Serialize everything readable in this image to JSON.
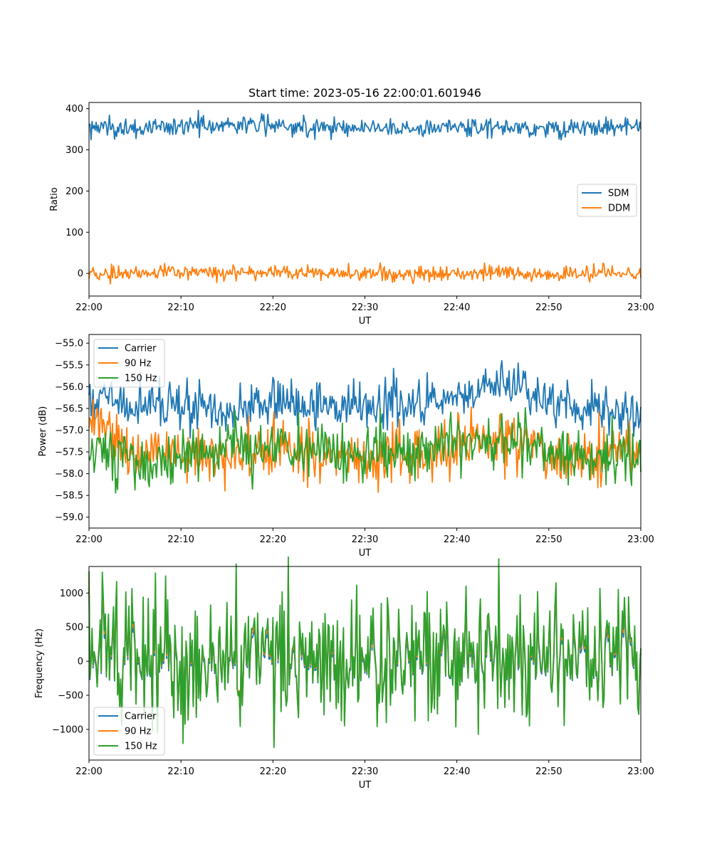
{
  "figure": {
    "title": "Start time: 2023-05-16 22:00:01.601946"
  },
  "chart_data": [
    {
      "type": "line",
      "xlabel": "UT",
      "ylabel": "Ratio",
      "xlim": [
        "22:00",
        "23:00"
      ],
      "ylim": [
        -55,
        415
      ],
      "x_ticks": [
        "22:00",
        "22:10",
        "22:20",
        "22:30",
        "22:40",
        "22:50",
        "23:00"
      ],
      "y_ticks": [
        0,
        100,
        200,
        300,
        400
      ],
      "legend_position": "center-right",
      "grid": false,
      "series": [
        {
          "name": "SDM",
          "color": "#1f77b4",
          "x": [
            "22:00",
            "22:05",
            "22:10",
            "22:15",
            "22:20",
            "22:25",
            "22:30",
            "22:35",
            "22:40",
            "22:45",
            "22:50",
            "22:55",
            "23:00"
          ],
          "values": [
            355,
            350,
            358,
            362,
            360,
            356,
            354,
            352,
            355,
            357,
            350,
            356,
            355
          ]
        },
        {
          "name": "DDM",
          "color": "#ff7f0e",
          "x": [
            "22:00",
            "22:05",
            "22:10",
            "22:15",
            "22:20",
            "22:25",
            "22:30",
            "22:35",
            "22:40",
            "22:45",
            "22:50",
            "22:55",
            "23:00"
          ],
          "values": [
            -5,
            2,
            3,
            0,
            2,
            1,
            0,
            -2,
            -1,
            2,
            -3,
            1,
            -5
          ]
        }
      ]
    },
    {
      "type": "line",
      "xlabel": "UT",
      "ylabel": "Power (dB)",
      "xlim": [
        "22:00",
        "23:00"
      ],
      "ylim": [
        -59.25,
        -54.8
      ],
      "x_ticks": [
        "22:00",
        "22:10",
        "22:20",
        "22:30",
        "22:40",
        "22:50",
        "23:00"
      ],
      "y_ticks": [
        -55.0,
        -55.5,
        -56.0,
        -56.5,
        -57.0,
        -57.5,
        -58.0,
        -58.5,
        -59.0
      ],
      "legend_position": "upper-left",
      "grid": false,
      "series": [
        {
          "name": "Carrier",
          "color": "#1f77b4",
          "x": [
            "22:00",
            "22:05",
            "22:10",
            "22:15",
            "22:20",
            "22:25",
            "22:30",
            "22:35",
            "22:40",
            "22:45",
            "22:50",
            "22:55",
            "23:00"
          ],
          "values": [
            -56.2,
            -56.4,
            -56.5,
            -56.6,
            -56.3,
            -56.5,
            -56.4,
            -56.5,
            -56.2,
            -56.0,
            -56.3,
            -56.5,
            -56.6
          ]
        },
        {
          "name": "90 Hz",
          "color": "#ff7f0e",
          "x": [
            "22:00",
            "22:05",
            "22:10",
            "22:15",
            "22:20",
            "22:25",
            "22:30",
            "22:35",
            "22:40",
            "22:45",
            "22:50",
            "22:55",
            "23:00"
          ],
          "values": [
            -56.8,
            -57.5,
            -57.6,
            -57.6,
            -57.5,
            -57.6,
            -57.7,
            -57.5,
            -57.3,
            -57.2,
            -57.5,
            -57.6,
            -57.4
          ]
        },
        {
          "name": "150 Hz",
          "color": "#2ca02c",
          "x": [
            "22:00",
            "22:05",
            "22:10",
            "22:15",
            "22:20",
            "22:25",
            "22:30",
            "22:35",
            "22:40",
            "22:45",
            "22:50",
            "22:55",
            "23:00"
          ],
          "values": [
            -57.6,
            -57.6,
            -57.5,
            -57.5,
            -57.4,
            -57.5,
            -57.6,
            -57.5,
            -57.3,
            -57.2,
            -57.5,
            -57.6,
            -57.7
          ]
        }
      ]
    },
    {
      "type": "line",
      "xlabel": "UT",
      "ylabel": "Frequency (Hz)",
      "xlim": [
        "22:00",
        "23:00"
      ],
      "ylim": [
        -1450,
        1390
      ],
      "x_ticks": [
        "22:00",
        "22:10",
        "22:20",
        "22:30",
        "22:40",
        "22:50",
        "23:00"
      ],
      "y_ticks": [
        1000,
        500,
        0,
        -500,
        -1000
      ],
      "legend_position": "lower-left",
      "grid": false,
      "series": [
        {
          "name": "Carrier",
          "color": "#1f77b4",
          "x": [
            "22:00",
            "22:05",
            "22:10",
            "22:15",
            "22:20",
            "22:25",
            "22:30",
            "22:35",
            "22:40",
            "22:45",
            "22:50",
            "22:55",
            "23:00"
          ],
          "values": [
            -20,
            10,
            -40,
            20,
            0,
            -60,
            30,
            -20,
            40,
            10,
            -30,
            20,
            -10
          ]
        },
        {
          "name": "90 Hz",
          "color": "#ff7f0e",
          "x": [
            "22:00",
            "22:05",
            "22:10",
            "22:15",
            "22:20",
            "22:25",
            "22:30",
            "22:35",
            "22:40",
            "22:45",
            "22:50",
            "22:55",
            "23:00"
          ],
          "values": [
            20,
            50,
            0,
            60,
            40,
            -20,
            70,
            20,
            80,
            50,
            10,
            60,
            30
          ]
        },
        {
          "name": "150 Hz",
          "color": "#2ca02c",
          "x": [
            "22:00",
            "22:05",
            "22:10",
            "22:15",
            "22:20",
            "22:25",
            "22:30",
            "22:35",
            "22:40",
            "22:45",
            "22:50",
            "22:55",
            "23:00"
          ],
          "values": [
            40,
            70,
            20,
            80,
            60,
            0,
            90,
            40,
            100,
            70,
            30,
            80,
            50
          ]
        }
      ]
    }
  ]
}
